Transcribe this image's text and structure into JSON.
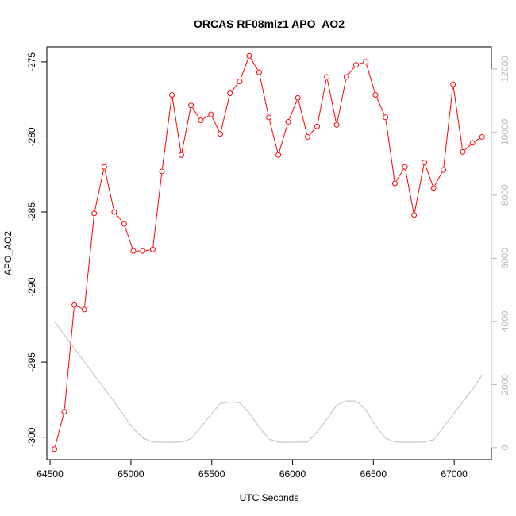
{
  "chart_data": {
    "type": "line",
    "title": "ORCAS RF08miz1 APO_AO2",
    "xlabel": "UTC Seconds",
    "ylabel": "APO_AO2",
    "xlim": [
      64480,
      67230
    ],
    "ylim": [
      -301.5,
      -274
    ],
    "y2lim": [
      -380,
      12700
    ],
    "grid": false,
    "legend": "none",
    "x_ticks": [
      64500,
      65000,
      65500,
      66000,
      66500,
      67000
    ],
    "x_tick_labels": [
      "64500",
      "65000",
      "65500",
      "66000",
      "66500",
      "67000"
    ],
    "y_ticks": [
      -300,
      -295,
      -290,
      -285,
      -280,
      -275
    ],
    "y_tick_labels": [
      "-300",
      "-295",
      "-290",
      "-285",
      "-280",
      "-275"
    ],
    "y2_ticks": [
      0,
      2000,
      4000,
      6000,
      8000,
      10000,
      12000
    ],
    "y2_tick_labels": [
      "0",
      "2000",
      "4000",
      "6000",
      "8000",
      "10000",
      "12000"
    ],
    "series": [
      {
        "color": "#ff0000",
        "axis": "left",
        "marker": "open-circle",
        "x": [
          64527,
          64588,
          64650,
          64712,
          64773,
          64835,
          64897,
          64958,
          65015,
          65074,
          65135,
          65192,
          65254,
          65312,
          65372,
          65432,
          65495,
          65553,
          65613,
          65673,
          65732,
          65793,
          65853,
          65912,
          65973,
          66033,
          66093,
          66152,
          66212,
          66273,
          66333,
          66393,
          66453,
          66513,
          66575,
          66633,
          66695,
          66752,
          66815,
          66872,
          66933,
          66993,
          67053,
          67113,
          67172
        ],
        "y": [
          -300.8,
          -298.3,
          -291.2,
          -291.5,
          -285.1,
          -282.0,
          -285.0,
          -285.8,
          -287.6,
          -287.6,
          -287.5,
          -282.3,
          -277.2,
          -281.2,
          -277.9,
          -278.9,
          -278.5,
          -279.8,
          -277.1,
          -276.3,
          -274.6,
          -275.7,
          -278.7,
          -281.2,
          -279.0,
          -277.4,
          -280.0,
          -279.3,
          -276.0,
          -279.2,
          -276.0,
          -275.2,
          -275.0,
          -277.2,
          -278.7,
          -283.1,
          -282.0,
          -285.2,
          -281.7,
          -283.4,
          -282.2,
          -276.5,
          -281.0,
          -280.4,
          -280.0
        ]
      },
      {
        "color": "#bebebe",
        "axis": "right",
        "marker": "none",
        "x": [
          64527,
          64650,
          64773,
          64897,
          65015,
          65074,
          65135,
          65254,
          65312,
          65372,
          65432,
          65495,
          65553,
          65613,
          65673,
          65732,
          65793,
          65853,
          65912,
          65973,
          66093,
          66152,
          66212,
          66273,
          66333,
          66393,
          66453,
          66513,
          66575,
          66633,
          66695,
          66752,
          66815,
          66872,
          66933,
          66993,
          67053,
          67113,
          67172
        ],
        "y": [
          4000,
          3150,
          2300,
          1450,
          600,
          300,
          180,
          170,
          180,
          280,
          650,
          1050,
          1400,
          1450,
          1420,
          1100,
          650,
          280,
          170,
          170,
          180,
          500,
          900,
          1350,
          1480,
          1480,
          1200,
          700,
          300,
          180,
          170,
          170,
          180,
          250,
          650,
          1050,
          1450,
          1850,
          2300
        ]
      }
    ]
  }
}
